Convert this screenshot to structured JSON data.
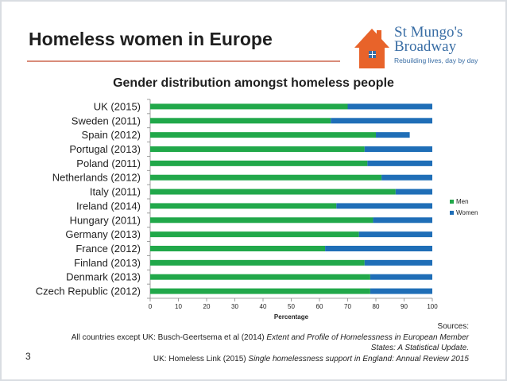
{
  "slide": {
    "title": "Homeless women in Europe",
    "number": "3"
  },
  "logo": {
    "name_line1": "St Mungo's",
    "name_line2": "Broadway",
    "tagline": "Rebuilding lives, day by day"
  },
  "colors": {
    "men": "#21a84a",
    "women": "#1f6eb7",
    "title_rule": "#d98c7a",
    "logo_orange": "#e8632a",
    "logo_blue": "#3a6ea5"
  },
  "chart_data": {
    "type": "bar",
    "orientation": "horizontal",
    "stacked": true,
    "title": "Gender distribution amongst homeless people",
    "xlabel": "Percentage",
    "ylabel": "",
    "xlim": [
      0,
      100
    ],
    "x_ticks": [
      0,
      10,
      20,
      30,
      40,
      50,
      60,
      70,
      80,
      90,
      100
    ],
    "grid": false,
    "legend_position": "right",
    "categories": [
      "UK (2015)",
      "Sweden (2011)",
      "Spain (2012)",
      "Portugal (2013)",
      "Poland (2011)",
      "Netherlands (2012)",
      "Italy (2011)",
      "Ireland (2014)",
      "Hungary (2011)",
      "Germany (2013)",
      "France (2012)",
      "Finland (2013)",
      "Denmark (2013)",
      "Czech Republic (2012)"
    ],
    "series": [
      {
        "name": "Men",
        "values": [
          70,
          64,
          80,
          76,
          77,
          82,
          87,
          66,
          79,
          74,
          62,
          76,
          78,
          78
        ]
      },
      {
        "name": "Women",
        "values": [
          30,
          36,
          12,
          24,
          23,
          18,
          13,
          34,
          21,
          26,
          38,
          24,
          22,
          22
        ]
      }
    ]
  },
  "sources": {
    "heading": "Sources:",
    "line1_prefix": "All countries except UK: Busch-Geertsema et al (2014) ",
    "line1_italic": "Extent and Profile of Homelessness in European Member",
    "line2_italic": "States: A Statistical Update.",
    "line3_prefix": "UK: Homeless Link (2015) ",
    "line3_italic": "Single homelessness support in England: Annual Review 2015"
  }
}
